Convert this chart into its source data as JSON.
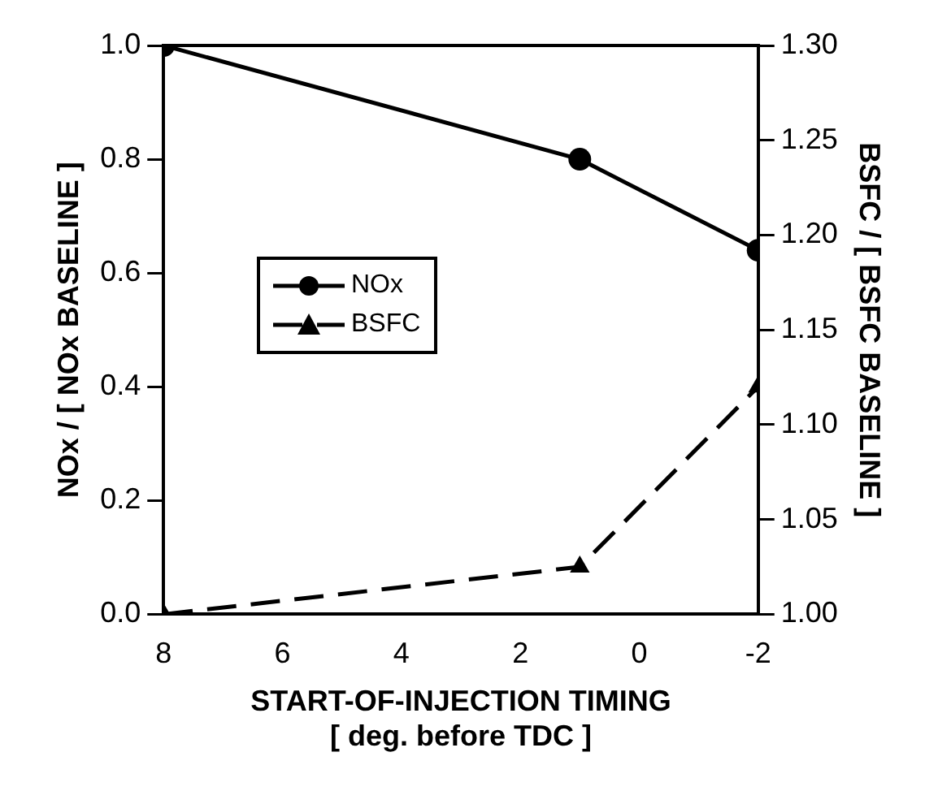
{
  "chart_data": {
    "type": "line",
    "xlabel": "START-OF-INJECTION TIMING\n[ deg. before TDC ]",
    "ylabel": "NOx / [ NOx BASELINE ]",
    "y2label": "BSFC / [ BSFC BASELINE ]",
    "x": [
      8,
      1,
      -2
    ],
    "xlim": [
      8,
      -2
    ],
    "xticks": [
      8,
      6,
      4,
      2,
      0,
      -2
    ],
    "ylim": [
      0,
      1
    ],
    "yticks": [
      {
        "value": 0,
        "label": "0.0"
      },
      {
        "value": 0.2,
        "label": "0.2"
      },
      {
        "value": 0.4,
        "label": "0.4"
      },
      {
        "value": 0.6,
        "label": "0.6"
      },
      {
        "value": 0.8,
        "label": "0.8"
      },
      {
        "value": 1,
        "label": "1.0"
      }
    ],
    "y2lim": [
      1,
      1.3
    ],
    "y2ticks": [
      {
        "value": 1,
        "label": "1.00"
      },
      {
        "value": 1.05,
        "label": "1.05"
      },
      {
        "value": 1.1,
        "label": "1.10"
      },
      {
        "value": 1.15,
        "label": "1.15"
      },
      {
        "value": 1.2,
        "label": "1.20"
      },
      {
        "value": 1.25,
        "label": "1.25"
      },
      {
        "value": 1.3,
        "label": "1.30"
      }
    ],
    "series": [
      {
        "name": "NOx",
        "color": "#000000",
        "values": [
          1.0,
          0.8,
          0.64
        ],
        "marker": "circle",
        "line_style": "solid"
      },
      {
        "name": "BSFC",
        "color": "#000000",
        "values": [
          1.0,
          1.025,
          1.12
        ],
        "axis": "y2",
        "marker": "triangle",
        "line_style": "dashed"
      }
    ],
    "grid": false,
    "legend": "left"
  }
}
